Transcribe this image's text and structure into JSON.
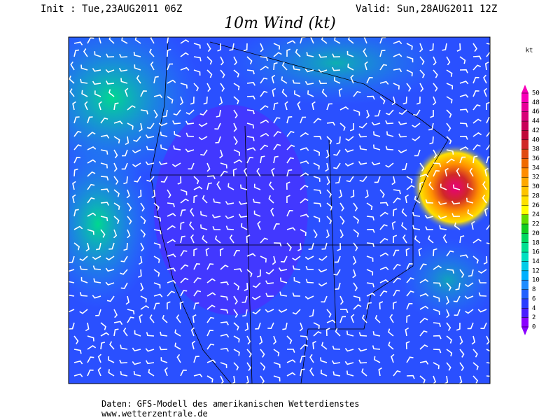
{
  "header": {
    "init": "Init : Tue,23AUG2011 06Z",
    "valid": "Valid: Sun,28AUG2011 12Z",
    "title": "10m Wind (kt)"
  },
  "colorbar": {
    "unit": "kt",
    "ticks": [
      0,
      2,
      4,
      6,
      8,
      10,
      12,
      14,
      16,
      18,
      20,
      22,
      24,
      26,
      28,
      30,
      32,
      34,
      36,
      38,
      40,
      42,
      44,
      46,
      48,
      50
    ],
    "colors": [
      "#8a00ff",
      "#4a1cff",
      "#2a3cff",
      "#2060ff",
      "#1e8cff",
      "#00b0ff",
      "#00cce8",
      "#00e0c0",
      "#00e090",
      "#00d860",
      "#10cc20",
      "#60dc00",
      "#ffff00",
      "#ffe000",
      "#ffc400",
      "#ffa800",
      "#ff8c00",
      "#f06a00",
      "#e04a10",
      "#d02828",
      "#c00838",
      "#c80058",
      "#d80078",
      "#e80098",
      "#f800b8"
    ]
  },
  "footer": {
    "line1": "Daten: GFS-Modell des amerikanischen Wetterdienstes",
    "line2": "www.wetterzentrale.de"
  }
}
